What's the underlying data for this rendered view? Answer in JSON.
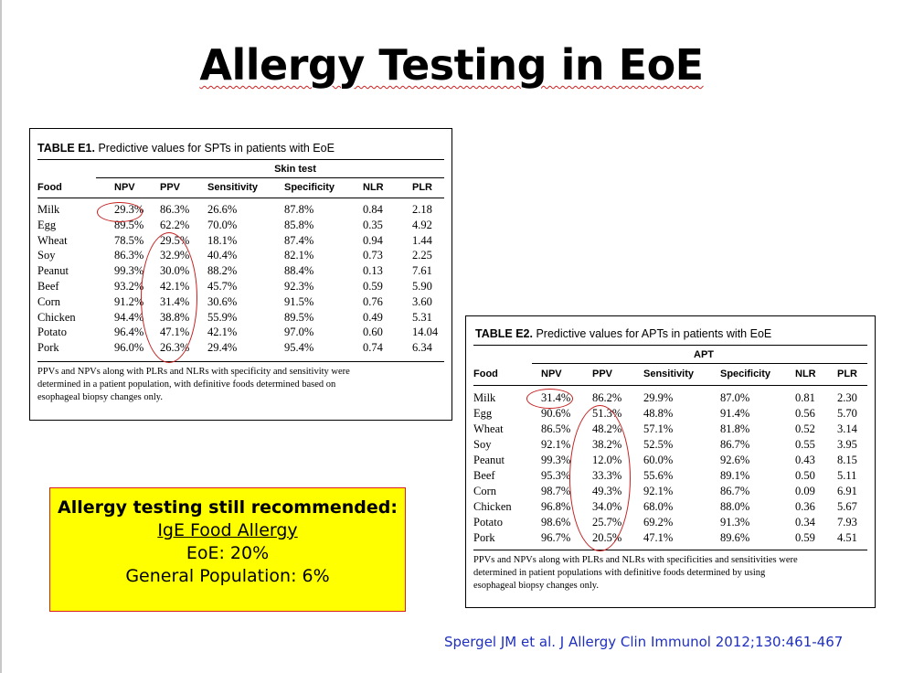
{
  "slide_title": "Allergy Testing in EoE",
  "table_e1": {
    "caption_label": "TABLE E1.",
    "caption_text": "Predictive values for SPTs in patients with EoE",
    "group_header": "Skin test",
    "headers": [
      "Food",
      "NPV",
      "PPV",
      "Sensitivity",
      "Specificity",
      "NLR",
      "PLR"
    ],
    "rows": [
      [
        "Milk",
        "29.3%",
        "86.3%",
        "26.6%",
        "87.8%",
        "0.84",
        "2.18"
      ],
      [
        "Egg",
        "89.5%",
        "62.2%",
        "70.0%",
        "85.8%",
        "0.35",
        "4.92"
      ],
      [
        "Wheat",
        "78.5%",
        "29.5%",
        "18.1%",
        "87.4%",
        "0.94",
        "1.44"
      ],
      [
        "Soy",
        "86.3%",
        "32.9%",
        "40.4%",
        "82.1%",
        "0.73",
        "2.25"
      ],
      [
        "Peanut",
        "99.3%",
        "30.0%",
        "88.2%",
        "88.4%",
        "0.13",
        "7.61"
      ],
      [
        "Beef",
        "93.2%",
        "42.1%",
        "45.7%",
        "92.3%",
        "0.59",
        "5.90"
      ],
      [
        "Corn",
        "91.2%",
        "31.4%",
        "30.6%",
        "91.5%",
        "0.76",
        "3.60"
      ],
      [
        "Chicken",
        "94.4%",
        "38.8%",
        "55.9%",
        "89.5%",
        "0.49",
        "5.31"
      ],
      [
        "Potato",
        "96.4%",
        "47.1%",
        "42.1%",
        "97.0%",
        "0.60",
        "14.04"
      ],
      [
        "Pork",
        "96.0%",
        "26.3%",
        "29.4%",
        "95.4%",
        "0.74",
        "6.34"
      ]
    ],
    "footnote_lines": [
      "PPVs and NPVs along with PLRs and NLRs with specificity and sensitivity were",
      "determined in a patient population, with definitive foods determined based on",
      "esophageal biopsy changes only."
    ]
  },
  "table_e2": {
    "caption_label": "TABLE E2.",
    "caption_text": "Predictive values for APTs in patients with EoE",
    "group_header": "APT",
    "headers": [
      "Food",
      "NPV",
      "PPV",
      "Sensitivity",
      "Specificity",
      "NLR",
      "PLR"
    ],
    "rows": [
      [
        "Milk",
        "31.4%",
        "86.2%",
        "29.9%",
        "87.0%",
        "0.81",
        "2.30"
      ],
      [
        "Egg",
        "90.6%",
        "51.3%",
        "48.8%",
        "91.4%",
        "0.56",
        "5.70"
      ],
      [
        "Wheat",
        "86.5%",
        "48.2%",
        "57.1%",
        "81.8%",
        "0.52",
        "3.14"
      ],
      [
        "Soy",
        "92.1%",
        "38.2%",
        "52.5%",
        "86.7%",
        "0.55",
        "3.95"
      ],
      [
        "Peanut",
        "99.3%",
        "12.0%",
        "60.0%",
        "92.6%",
        "0.43",
        "8.15"
      ],
      [
        "Beef",
        "95.3%",
        "33.3%",
        "55.6%",
        "89.1%",
        "0.50",
        "5.11"
      ],
      [
        "Corn",
        "98.7%",
        "49.3%",
        "92.1%",
        "86.7%",
        "0.09",
        "6.91"
      ],
      [
        "Chicken",
        "96.8%",
        "34.0%",
        "68.0%",
        "88.0%",
        "0.36",
        "5.67"
      ],
      [
        "Potato",
        "98.6%",
        "25.7%",
        "69.2%",
        "91.3%",
        "0.34",
        "7.93"
      ],
      [
        "Pork",
        "96.7%",
        "20.5%",
        "47.1%",
        "89.6%",
        "0.59",
        "4.51"
      ]
    ],
    "footnote_lines": [
      "PPVs and NPVs along with PLRs and NLRs with specificities and sensitivities were",
      "determined in patient populations with definitive foods determined by using",
      "esophageal biopsy changes only."
    ]
  },
  "callout": {
    "heading": "Allergy testing still recommended:",
    "line2": "IgE Food Allergy",
    "line3": "EoE: 20%",
    "line4": "General Population: 6%"
  },
  "citation": "Spergel JM et al. J Allergy Clin Immunol 2012;130:461-467",
  "colors": {
    "callout_bg": "#ffff00",
    "annotation_ring": "#c62020",
    "citation_text": "#1f2fbf"
  }
}
